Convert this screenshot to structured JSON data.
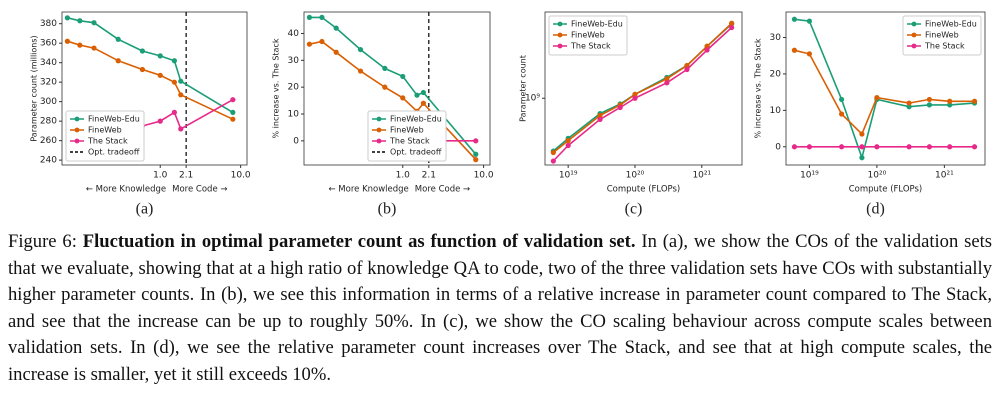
{
  "chart_data": [
    {
      "type": "line",
      "label": "(a)",
      "ylabel": "Parameter count (millions)",
      "xlabels": [
        "← More Knowledge",
        "More Code →"
      ],
      "xlog": true,
      "xlim": [
        0.06,
        12
      ],
      "xticks": [
        {
          "value": 1,
          "label": "1.0"
        },
        2.1,
        {
          "value": 10,
          "label": "10.0"
        }
      ],
      "ylim": [
        235,
        392
      ],
      "yticks": [
        240,
        260,
        280,
        300,
        320,
        340,
        360,
        380
      ],
      "legend": "lower left",
      "x": [
        0.07,
        0.1,
        0.15,
        0.3,
        0.6,
        1.0,
        1.5,
        1.8,
        8.0
      ],
      "series": [
        {
          "name": "FineWeb-Edu",
          "color": "#1b9e77",
          "values": [
            386,
            383,
            381,
            364,
            352,
            347,
            342,
            321,
            289
          ]
        },
        {
          "name": "FineWeb",
          "color": "#d95f02",
          "values": [
            362,
            358,
            355,
            342,
            333,
            327,
            320,
            307,
            282
          ]
        },
        {
          "name": "The Stack",
          "color": "#e7298a",
          "values": [
            null,
            null,
            null,
            null,
            275,
            280,
            289,
            272,
            302
          ]
        }
      ],
      "vline": {
        "x": 2.1,
        "name": "Opt. tradeoff"
      }
    },
    {
      "type": "line",
      "label": "(b)",
      "ylabel": "% increase vs. The Stack",
      "xlabels": [
        "← More Knowledge",
        "More Code →"
      ],
      "xlog": true,
      "xlim": [
        0.06,
        12
      ],
      "xticks": [
        {
          "value": 1,
          "label": "1.0"
        },
        2.1,
        {
          "value": 10,
          "label": "10.0"
        }
      ],
      "ylim": [
        -9,
        48
      ],
      "yticks": [
        0,
        10,
        20,
        30,
        40
      ],
      "legend": "lower center",
      "x": [
        0.07,
        0.1,
        0.15,
        0.3,
        0.6,
        1.0,
        1.5,
        1.8,
        8.0
      ],
      "series": [
        {
          "name": "FineWeb-Edu",
          "color": "#1b9e77",
          "values": [
            46,
            46,
            42,
            34,
            27,
            24,
            17,
            18,
            -5
          ]
        },
        {
          "name": "FineWeb",
          "color": "#d95f02",
          "values": [
            36,
            37,
            33,
            26,
            20,
            16,
            11,
            14,
            -7
          ]
        },
        {
          "name": "The Stack",
          "color": "#e7298a",
          "values": [
            null,
            null,
            null,
            null,
            0,
            0,
            0,
            0,
            0
          ]
        }
      ],
      "vline": {
        "x": 2.1,
        "name": "Opt. tradeoff"
      }
    },
    {
      "type": "line",
      "label": "(c)",
      "ylabel": "Parameter count",
      "xlabel": "Compute (FLOPs)",
      "xlog": true,
      "ylog": true,
      "xlim": [
        4.5e+18,
        4e+21
      ],
      "xticks": [
        {
          "value": 1e+19,
          "label": "10¹⁹"
        },
        {
          "value": 1e+20,
          "label": "10²⁰"
        },
        {
          "value": 1e+21,
          "label": "10²¹"
        }
      ],
      "ylim": [
        200000000.0,
        8000000000.0
      ],
      "yticks": [
        {
          "value": 1000000000.0,
          "label": "10⁹"
        }
      ],
      "legend": "upper left",
      "x": [
        6e+18,
        1e+19,
        3e+19,
        6e+19,
        1e+20,
        3e+20,
        6e+20,
        1.2e+21,
        2.8e+21
      ],
      "series": [
        {
          "name": "FineWeb-Edu",
          "color": "#1b9e77",
          "values": [
            280000000.0,
            380000000.0,
            690000000.0,
            870000000.0,
            1100000000.0,
            1650000000.0,
            2200000000.0,
            3500000000.0,
            6000000000.0
          ]
        },
        {
          "name": "FineWeb",
          "color": "#d95f02",
          "values": [
            270000000.0,
            360000000.0,
            660000000.0,
            850000000.0,
            1100000000.0,
            1600000000.0,
            2200000000.0,
            3500000000.0,
            6100000000.0
          ]
        },
        {
          "name": "The Stack",
          "color": "#e7298a",
          "values": [
            220000000.0,
            320000000.0,
            600000000.0,
            800000000.0,
            1000000000.0,
            1450000000.0,
            2000000000.0,
            3200000000.0,
            5500000000.0
          ]
        }
      ]
    },
    {
      "type": "line",
      "label": "(d)",
      "ylabel": "% increase vs. The Stack",
      "xlabel": "Compute (FLOPs)",
      "xlog": true,
      "xlim": [
        4.5e+18,
        4e+21
      ],
      "xticks": [
        {
          "value": 1e+19,
          "label": "10¹⁹"
        },
        {
          "value": 1e+20,
          "label": "10²⁰"
        },
        {
          "value": 1e+21,
          "label": "10²¹"
        }
      ],
      "ylim": [
        -5,
        37
      ],
      "yticks": [
        0,
        10,
        20,
        30
      ],
      "legend": "upper right",
      "x": [
        6e+18,
        1e+19,
        3e+19,
        6e+19,
        1e+20,
        3e+20,
        6e+20,
        1.2e+21,
        2.8e+21
      ],
      "series": [
        {
          "name": "FineWeb-Edu",
          "color": "#1b9e77",
          "values": [
            35,
            34.5,
            13,
            -3,
            13,
            11,
            11.5,
            11.5,
            12
          ]
        },
        {
          "name": "FineWeb",
          "color": "#d95f02",
          "values": [
            26.5,
            25.5,
            9,
            3.5,
            13.5,
            12,
            13,
            12.5,
            12.5
          ]
        },
        {
          "name": "The Stack",
          "color": "#e7298a",
          "values": [
            0,
            0,
            0,
            0,
            0,
            0,
            0,
            0,
            0
          ]
        }
      ]
    }
  ],
  "caption": {
    "label": "Figure 6:",
    "title": "Fluctuation in optimal parameter count as function of validation set.",
    "text": "In (a), we show the COs of the validation sets that we evaluate, showing that at a high ratio of knowledge QA to code, two of the three validation sets have COs with substantially higher parameter counts. In (b), we see this information in terms of a relative increase in parameter count compared to The Stack, and see that the increase can be up to roughly 50%. In (c), we show the CO scaling behaviour across compute scales between validation sets. In (d), we see the relative parameter count increases over The Stack, and see that at high compute scales, the increase is smaller, yet it still exceeds 10%."
  }
}
